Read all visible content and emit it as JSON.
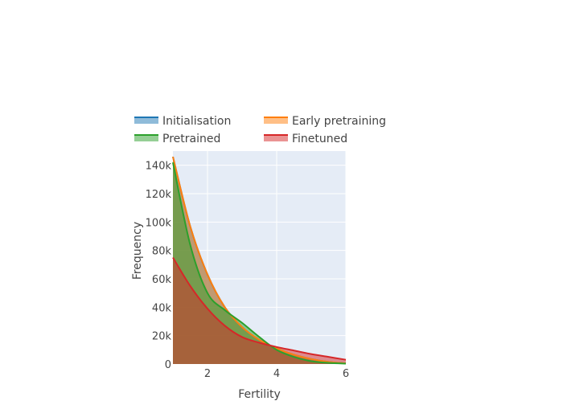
{
  "chart_data": {
    "type": "area",
    "xlabel": "Fertility",
    "ylabel": "Frequency",
    "xlim": [
      1,
      6
    ],
    "ylim": [
      0,
      150000
    ],
    "x_ticks": [
      2,
      4,
      6
    ],
    "y_ticks": [
      0,
      20000,
      40000,
      60000,
      80000,
      100000,
      120000,
      140000
    ],
    "y_tick_labels": [
      "0",
      "20k",
      "40k",
      "60k",
      "80k",
      "100k",
      "120k",
      "140k"
    ],
    "grid": true,
    "legend_position": "top",
    "series": [
      {
        "name": "Initialisation",
        "color": "#1f77b4",
        "x": [
          1,
          1.5,
          2,
          2.5,
          3,
          3.5,
          4,
          4.5,
          5,
          5.5,
          6
        ],
        "values": [
          146000,
          97000,
          63000,
          40000,
          26000,
          17000,
          11000,
          6500,
          3500,
          1500,
          500
        ]
      },
      {
        "name": "Early pretraining",
        "color": "#ff7f0e",
        "x": [
          1,
          1.5,
          2,
          2.5,
          3,
          3.5,
          4,
          4.5,
          5,
          5.5,
          6
        ],
        "values": [
          146000,
          97000,
          63000,
          40000,
          26000,
          17000,
          11000,
          6500,
          3500,
          1500,
          500
        ]
      },
      {
        "name": "Pretrained",
        "color": "#2ca02c",
        "x": [
          1,
          1.5,
          2,
          2.5,
          3,
          3.5,
          4,
          4.5,
          5,
          5.5,
          6
        ],
        "values": [
          142000,
          84000,
          50000,
          38000,
          29000,
          19000,
          10000,
          5000,
          2000,
          800,
          300
        ]
      },
      {
        "name": "Finetuned",
        "color": "#d62728",
        "x": [
          1,
          1.5,
          2,
          2.5,
          3,
          3.5,
          4,
          4.5,
          5,
          5.5,
          6
        ],
        "values": [
          75000,
          55000,
          39000,
          27000,
          19000,
          15000,
          12000,
          9500,
          7000,
          5000,
          3000
        ]
      }
    ]
  }
}
